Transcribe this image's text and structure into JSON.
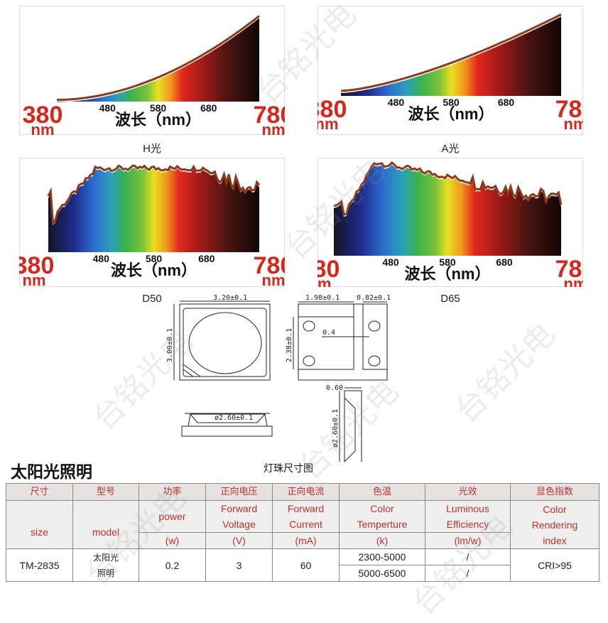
{
  "spectra": {
    "axis_unit": "nm",
    "axis_label": "波长（nm）",
    "range_start": "380",
    "range_end": "780",
    "ticks": [
      "480",
      "580",
      "680"
    ],
    "panels": [
      {
        "caption": "H光",
        "shape": "H"
      },
      {
        "caption": "A光",
        "shape": "A"
      },
      {
        "caption": "D50",
        "shape": "D50"
      },
      {
        "caption": "D65",
        "shape": "D65"
      }
    ],
    "curve_color": "#8b3a1a",
    "label_color": "#d9261c"
  },
  "watermark": "台铭光电",
  "drawing": {
    "caption": "灯珠尺寸图",
    "width_top": "3.20±0.1",
    "height_top": "3.00±0.1",
    "pad_width": "1.98±0.1",
    "pad_small": "0.82±0.1",
    "pad_height": "2.38±0.1",
    "gap": "0.4",
    "thickness": "0.60",
    "diameter_side": "ø2.60±0.1",
    "diameter_end": "ø2.60±0.1"
  },
  "section_title": "太阳光照明",
  "table": {
    "header_cn": [
      "尺寸",
      "型号",
      "功率",
      "正向电压",
      "正向电流",
      "色温",
      "光效",
      "显色指数"
    ],
    "header_en": {
      "size": "size",
      "model": "model",
      "power": "power",
      "voltage": [
        "Forward",
        "Voltage"
      ],
      "current": [
        "Forward",
        "Current"
      ],
      "cct": [
        "Color",
        "Temperture"
      ],
      "efficacy": [
        "Luminous",
        "Efficiency"
      ],
      "cri": [
        "Color",
        "Rendering",
        "index"
      ]
    },
    "units": [
      "(w)",
      "(V)",
      "(mA)",
      "(k)",
      "(lm/w)"
    ],
    "row": {
      "size": "TM-2835",
      "model": [
        "太阳光",
        "照明"
      ],
      "power": "0.2",
      "voltage": "3",
      "current": "60",
      "cct": [
        "2300-5000",
        "5000-6500"
      ],
      "efficacy": [
        "/",
        "/"
      ],
      "cri": "CRI>95"
    }
  }
}
